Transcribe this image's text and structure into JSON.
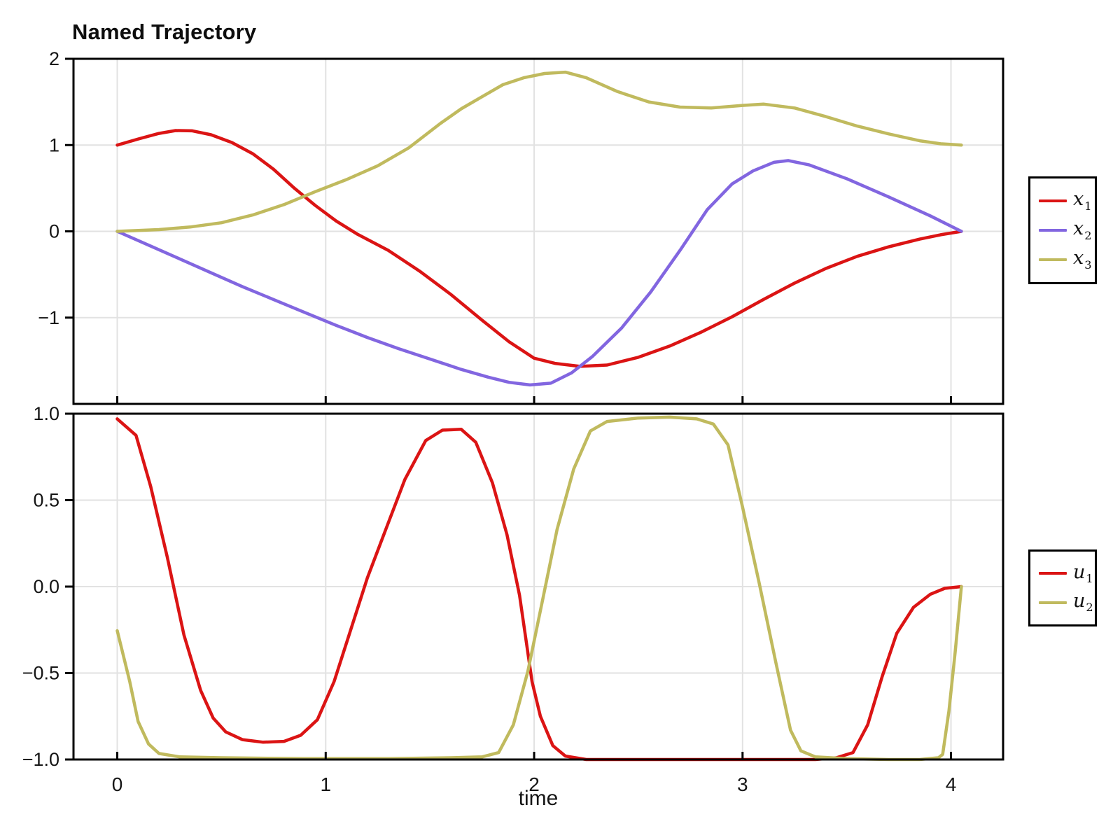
{
  "title": "Named Trajectory",
  "axis": {
    "xlabel": "time"
  },
  "frame_color": "#000000",
  "grid_color": "#e2e2e2",
  "tick_label_color": "#151515",
  "chart_data": [
    {
      "type": "line",
      "title": "Named Trajectory",
      "xlabel": "",
      "ylabel": "",
      "xlim": [
        -0.21,
        4.25
      ],
      "ylim": [
        -2,
        2
      ],
      "grid": true,
      "legend_position": "right-outside",
      "xticks": {
        "values": [
          0,
          1,
          2,
          3,
          4
        ],
        "labels": [
          "0",
          "1",
          "2",
          "3",
          "4"
        ],
        "show_labels": false
      },
      "yticks": {
        "values": [
          2,
          1,
          0,
          -1
        ],
        "labels": [
          "2",
          "1",
          "0",
          "−1"
        ]
      },
      "series": [
        {
          "name": "x1",
          "label_base": "x",
          "label_sub": "1",
          "color": "#db1414",
          "points": [
            [
              0,
              1.0
            ],
            [
              0.1,
              1.07
            ],
            [
              0.2,
              1.135
            ],
            [
              0.28,
              1.168
            ],
            [
              0.36,
              1.165
            ],
            [
              0.45,
              1.12
            ],
            [
              0.55,
              1.03
            ],
            [
              0.65,
              0.9
            ],
            [
              0.75,
              0.72
            ],
            [
              0.85,
              0.5
            ],
            [
              0.95,
              0.3
            ],
            [
              1.05,
              0.12
            ],
            [
              1.15,
              -0.03
            ],
            [
              1.3,
              -0.22
            ],
            [
              1.45,
              -0.46
            ],
            [
              1.6,
              -0.73
            ],
            [
              1.75,
              -1.03
            ],
            [
              1.88,
              -1.28
            ],
            [
              2.0,
              -1.47
            ],
            [
              2.1,
              -1.53
            ],
            [
              2.22,
              -1.565
            ],
            [
              2.35,
              -1.55
            ],
            [
              2.5,
              -1.46
            ],
            [
              2.65,
              -1.33
            ],
            [
              2.8,
              -1.17
            ],
            [
              2.95,
              -0.99
            ],
            [
              3.1,
              -0.79
            ],
            [
              3.25,
              -0.6
            ],
            [
              3.4,
              -0.43
            ],
            [
              3.55,
              -0.29
            ],
            [
              3.7,
              -0.18
            ],
            [
              3.85,
              -0.09
            ],
            [
              3.95,
              -0.04
            ],
            [
              4.05,
              0.0
            ]
          ]
        },
        {
          "name": "x2",
          "label_base": "x",
          "label_sub": "2",
          "color": "#8266e0",
          "points": [
            [
              0,
              0
            ],
            [
              0.15,
              -0.16
            ],
            [
              0.3,
              -0.32
            ],
            [
              0.45,
              -0.48
            ],
            [
              0.6,
              -0.64
            ],
            [
              0.75,
              -0.79
            ],
            [
              0.9,
              -0.94
            ],
            [
              1.05,
              -1.09
            ],
            [
              1.2,
              -1.23
            ],
            [
              1.35,
              -1.36
            ],
            [
              1.5,
              -1.48
            ],
            [
              1.65,
              -1.6
            ],
            [
              1.78,
              -1.69
            ],
            [
              1.88,
              -1.75
            ],
            [
              1.98,
              -1.78
            ],
            [
              2.08,
              -1.76
            ],
            [
              2.18,
              -1.64
            ],
            [
              2.28,
              -1.45
            ],
            [
              2.42,
              -1.12
            ],
            [
              2.56,
              -0.7
            ],
            [
              2.7,
              -0.22
            ],
            [
              2.83,
              0.25
            ],
            [
              2.95,
              0.55
            ],
            [
              3.05,
              0.7
            ],
            [
              3.15,
              0.8
            ],
            [
              3.22,
              0.82
            ],
            [
              3.32,
              0.77
            ],
            [
              3.5,
              0.61
            ],
            [
              3.7,
              0.4
            ],
            [
              3.9,
              0.18
            ],
            [
              4.05,
              0.0
            ]
          ]
        },
        {
          "name": "x3",
          "label_base": "x",
          "label_sub": "3",
          "color": "#c0ba5e",
          "points": [
            [
              0,
              0
            ],
            [
              0.2,
              0.02
            ],
            [
              0.35,
              0.05
            ],
            [
              0.5,
              0.1
            ],
            [
              0.65,
              0.19
            ],
            [
              0.8,
              0.31
            ],
            [
              0.95,
              0.46
            ],
            [
              1.1,
              0.6
            ],
            [
              1.25,
              0.76
            ],
            [
              1.4,
              0.97
            ],
            [
              1.55,
              1.25
            ],
            [
              1.65,
              1.42
            ],
            [
              1.75,
              1.56
            ],
            [
              1.85,
              1.7
            ],
            [
              1.95,
              1.78
            ],
            [
              2.05,
              1.83
            ],
            [
              2.15,
              1.845
            ],
            [
              2.25,
              1.78
            ],
            [
              2.4,
              1.62
            ],
            [
              2.55,
              1.5
            ],
            [
              2.7,
              1.44
            ],
            [
              2.85,
              1.43
            ],
            [
              3.0,
              1.46
            ],
            [
              3.1,
              1.475
            ],
            [
              3.25,
              1.43
            ],
            [
              3.4,
              1.33
            ],
            [
              3.55,
              1.22
            ],
            [
              3.7,
              1.13
            ],
            [
              3.85,
              1.05
            ],
            [
              3.95,
              1.015
            ],
            [
              4.05,
              1.0
            ]
          ]
        }
      ]
    },
    {
      "type": "line",
      "title": "",
      "xlabel": "time",
      "ylabel": "",
      "xlim": [
        -0.21,
        4.25
      ],
      "ylim": [
        -1,
        1
      ],
      "grid": true,
      "legend_position": "right-outside",
      "xticks": {
        "values": [
          0,
          1,
          2,
          3,
          4
        ],
        "labels": [
          "0",
          "1",
          "2",
          "3",
          "4"
        ],
        "show_labels": true
      },
      "yticks": {
        "values": [
          1.0,
          0.5,
          0.0,
          -0.5,
          -1.0
        ],
        "labels": [
          "1.0",
          "0.5",
          "0.0",
          "−0.5",
          "−1.0"
        ]
      },
      "series": [
        {
          "name": "u1",
          "label_base": "u",
          "label_sub": "1",
          "color": "#db1414",
          "points": [
            [
              0,
              0.97
            ],
            [
              0.09,
              0.875
            ],
            [
              0.16,
              0.58
            ],
            [
              0.24,
              0.17
            ],
            [
              0.32,
              -0.28
            ],
            [
              0.4,
              -0.6
            ],
            [
              0.46,
              -0.76
            ],
            [
              0.52,
              -0.84
            ],
            [
              0.6,
              -0.885
            ],
            [
              0.7,
              -0.9
            ],
            [
              0.8,
              -0.895
            ],
            [
              0.88,
              -0.86
            ],
            [
              0.96,
              -0.77
            ],
            [
              1.04,
              -0.55
            ],
            [
              1.12,
              -0.25
            ],
            [
              1.2,
              0.05
            ],
            [
              1.285,
              0.32
            ],
            [
              1.38,
              0.62
            ],
            [
              1.48,
              0.845
            ],
            [
              1.56,
              0.905
            ],
            [
              1.65,
              0.91
            ],
            [
              1.72,
              0.835
            ],
            [
              1.8,
              0.6
            ],
            [
              1.87,
              0.3
            ],
            [
              1.93,
              -0.05
            ],
            [
              1.99,
              -0.55
            ],
            [
              2.03,
              -0.75
            ],
            [
              2.09,
              -0.92
            ],
            [
              2.15,
              -0.98
            ],
            [
              2.25,
              -1.0
            ],
            [
              2.6,
              -1.0
            ],
            [
              3.0,
              -1.0
            ],
            [
              3.35,
              -1.0
            ],
            [
              3.45,
              -0.99
            ],
            [
              3.53,
              -0.96
            ],
            [
              3.6,
              -0.8
            ],
            [
              3.67,
              -0.52
            ],
            [
              3.74,
              -0.27
            ],
            [
              3.82,
              -0.12
            ],
            [
              3.9,
              -0.045
            ],
            [
              3.97,
              -0.01
            ],
            [
              4.05,
              0.0
            ]
          ]
        },
        {
          "name": "u2",
          "label_base": "u",
          "label_sub": "2",
          "color": "#c0ba5e",
          "points": [
            [
              0,
              -0.255
            ],
            [
              0.06,
              -0.55
            ],
            [
              0.1,
              -0.78
            ],
            [
              0.15,
              -0.91
            ],
            [
              0.2,
              -0.965
            ],
            [
              0.3,
              -0.985
            ],
            [
              0.5,
              -0.99
            ],
            [
              0.9,
              -0.995
            ],
            [
              1.3,
              -0.995
            ],
            [
              1.6,
              -0.99
            ],
            [
              1.75,
              -0.985
            ],
            [
              1.83,
              -0.96
            ],
            [
              1.9,
              -0.8
            ],
            [
              1.97,
              -0.49
            ],
            [
              2.04,
              -0.08
            ],
            [
              2.11,
              0.33
            ],
            [
              2.19,
              0.68
            ],
            [
              2.27,
              0.9
            ],
            [
              2.35,
              0.955
            ],
            [
              2.5,
              0.975
            ],
            [
              2.65,
              0.98
            ],
            [
              2.78,
              0.97
            ],
            [
              2.86,
              0.94
            ],
            [
              2.93,
              0.82
            ],
            [
              3.0,
              0.46
            ],
            [
              3.08,
              0.02
            ],
            [
              3.16,
              -0.44
            ],
            [
              3.23,
              -0.83
            ],
            [
              3.28,
              -0.95
            ],
            [
              3.35,
              -0.985
            ],
            [
              3.5,
              -0.995
            ],
            [
              3.7,
              -1.0
            ],
            [
              3.85,
              -1.0
            ],
            [
              3.94,
              -0.99
            ],
            [
              3.96,
              -0.97
            ],
            [
              3.99,
              -0.72
            ],
            [
              4.02,
              -0.38
            ],
            [
              4.05,
              0.0
            ]
          ]
        }
      ]
    }
  ]
}
